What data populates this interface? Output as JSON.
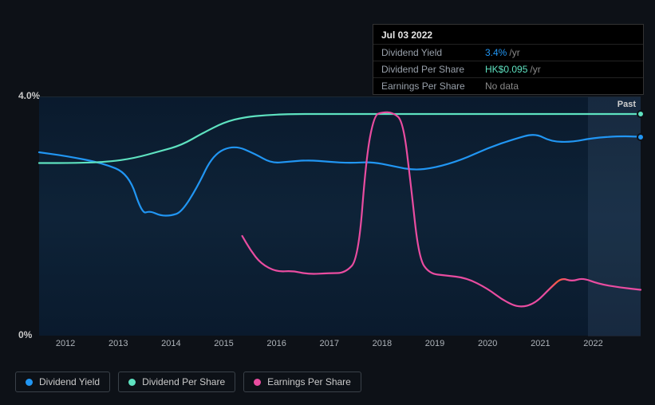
{
  "tooltip": {
    "title": "Jul 03 2022",
    "rows": [
      {
        "label": "Dividend Yield",
        "value": "3.4%",
        "suffix": "/yr",
        "value_color": "#2196f3"
      },
      {
        "label": "Dividend Per Share",
        "value": "HK$0.095",
        "suffix": "/yr",
        "value_color": "#5ee2c0"
      },
      {
        "label": "Earnings Per Share",
        "value": "No data",
        "suffix": null,
        "value_color": "#8a8a8a"
      }
    ]
  },
  "chart": {
    "type": "line",
    "background_color": "#0d1117",
    "plot_bg_gradient": [
      "#0a1a2d",
      "#0e2338",
      "#0a1a2d"
    ],
    "y_axis": {
      "min": 0,
      "max": 4.0,
      "ticks": [
        {
          "value": 4.0,
          "label": "4.0%"
        },
        {
          "value": 0,
          "label": "0%"
        }
      ],
      "label_color": "#c9c9c9",
      "font_size": 12
    },
    "x_axis": {
      "min": 2011.5,
      "max": 2022.9,
      "ticks": [
        2012,
        2013,
        2014,
        2015,
        2016,
        2017,
        2018,
        2019,
        2020,
        2021,
        2022
      ],
      "label_color": "#aeb4ba",
      "font_size": 11
    },
    "past_region": {
      "from_x": 2021.9,
      "label": "Past",
      "fill": "rgba(120,160,200,0.12)"
    },
    "series": [
      {
        "name": "Dividend Yield",
        "color": "#2196f3",
        "stroke_width": 2.2,
        "end_marker": true,
        "points": [
          [
            2011.5,
            3.08
          ],
          [
            2012.0,
            3.02
          ],
          [
            2012.7,
            2.9
          ],
          [
            2013.2,
            2.72
          ],
          [
            2013.45,
            2.05
          ],
          [
            2013.6,
            2.1
          ],
          [
            2013.8,
            2.02
          ],
          [
            2014.0,
            2.02
          ],
          [
            2014.2,
            2.08
          ],
          [
            2014.5,
            2.5
          ],
          [
            2014.8,
            3.05
          ],
          [
            2015.2,
            3.2
          ],
          [
            2015.6,
            3.05
          ],
          [
            2015.9,
            2.9
          ],
          [
            2016.2,
            2.92
          ],
          [
            2016.6,
            2.95
          ],
          [
            2017.0,
            2.92
          ],
          [
            2017.4,
            2.9
          ],
          [
            2017.8,
            2.92
          ],
          [
            2018.2,
            2.85
          ],
          [
            2018.6,
            2.78
          ],
          [
            2019.0,
            2.82
          ],
          [
            2019.5,
            2.95
          ],
          [
            2020.0,
            3.15
          ],
          [
            2020.5,
            3.3
          ],
          [
            2020.9,
            3.4
          ],
          [
            2021.2,
            3.26
          ],
          [
            2021.6,
            3.25
          ],
          [
            2022.0,
            3.32
          ],
          [
            2022.5,
            3.35
          ],
          [
            2022.9,
            3.34
          ]
        ]
      },
      {
        "name": "Dividend Per Share",
        "color": "#5ee2c0",
        "stroke_width": 2.2,
        "end_marker": true,
        "points": [
          [
            2011.5,
            2.9
          ],
          [
            2012.2,
            2.9
          ],
          [
            2012.8,
            2.92
          ],
          [
            2013.3,
            2.98
          ],
          [
            2013.8,
            3.1
          ],
          [
            2014.2,
            3.2
          ],
          [
            2014.6,
            3.4
          ],
          [
            2015.0,
            3.58
          ],
          [
            2015.4,
            3.67
          ],
          [
            2015.8,
            3.7
          ],
          [
            2016.2,
            3.72
          ],
          [
            2017.0,
            3.72
          ],
          [
            2018.0,
            3.72
          ],
          [
            2019.0,
            3.72
          ],
          [
            2020.0,
            3.72
          ],
          [
            2021.0,
            3.72
          ],
          [
            2022.0,
            3.72
          ],
          [
            2022.9,
            3.72
          ]
        ]
      },
      {
        "name": "Earnings Per Share",
        "color": "#e94ca0",
        "stroke_width": 2.2,
        "end_marker": false,
        "gradient": {
          "from_x": 2020.2,
          "to_x": 2020.9,
          "colors": [
            "#e94ca0",
            "#ff5b3a",
            "#e94ca0"
          ]
        },
        "points": [
          [
            2015.35,
            1.68
          ],
          [
            2015.5,
            1.45
          ],
          [
            2015.7,
            1.22
          ],
          [
            2016.0,
            1.08
          ],
          [
            2016.3,
            1.1
          ],
          [
            2016.6,
            1.04
          ],
          [
            2017.0,
            1.06
          ],
          [
            2017.3,
            1.06
          ],
          [
            2017.55,
            1.3
          ],
          [
            2017.7,
            3.0
          ],
          [
            2017.85,
            3.7
          ],
          [
            2018.0,
            3.75
          ],
          [
            2018.2,
            3.75
          ],
          [
            2018.4,
            3.6
          ],
          [
            2018.55,
            2.5
          ],
          [
            2018.7,
            1.3
          ],
          [
            2018.9,
            1.05
          ],
          [
            2019.2,
            1.02
          ],
          [
            2019.6,
            0.98
          ],
          [
            2020.0,
            0.8
          ],
          [
            2020.3,
            0.6
          ],
          [
            2020.6,
            0.48
          ],
          [
            2020.9,
            0.55
          ],
          [
            2021.2,
            0.82
          ],
          [
            2021.4,
            0.98
          ],
          [
            2021.6,
            0.92
          ],
          [
            2021.8,
            0.98
          ],
          [
            2022.1,
            0.88
          ],
          [
            2022.5,
            0.82
          ],
          [
            2022.9,
            0.78
          ]
        ]
      }
    ],
    "legend": {
      "border_color": "#3a4149",
      "text_color": "#c9c9c9",
      "font_size": 12,
      "items": [
        {
          "label": "Dividend Yield",
          "color": "#2196f3"
        },
        {
          "label": "Dividend Per Share",
          "color": "#5ee2c0"
        },
        {
          "label": "Earnings Per Share",
          "color": "#e94ca0"
        }
      ]
    }
  }
}
